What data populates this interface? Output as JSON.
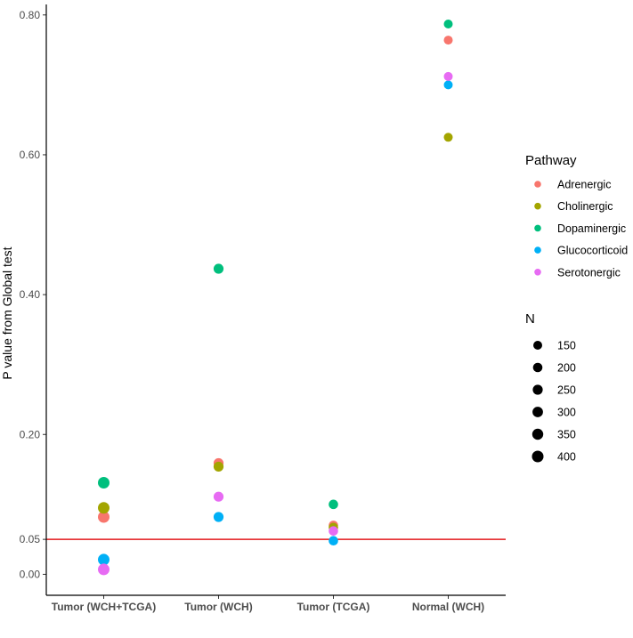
{
  "chart_data": {
    "type": "scatter",
    "categories": [
      "Tumor (WCH+TCGA)",
      "Tumor (WCH)",
      "Tumor (TCGA)",
      "Normal (WCH)"
    ],
    "ylabel": "P value from Global test",
    "xlabel": "",
    "ylim": [
      -0.03,
      0.815
    ],
    "yticks": [
      0.0,
      0.05,
      0.2,
      0.4,
      0.6,
      0.8
    ],
    "ytick_labels": [
      "0.00",
      "0.05",
      "0.20",
      "0.40",
      "0.60",
      "0.80"
    ],
    "reference_line": {
      "value": 0.05,
      "color": "#e31a1c"
    },
    "grid": false,
    "legend_position": "right",
    "series": [
      {
        "name": "Adrenergic",
        "color": "#F8766D",
        "points": [
          {
            "x": "Tumor (WCH+TCGA)",
            "y": 0.082,
            "n": 400
          },
          {
            "x": "Tumor (WCH)",
            "y": 0.159,
            "n": 250
          },
          {
            "x": "Tumor (TCGA)",
            "y": 0.07,
            "n": 200
          },
          {
            "x": "Normal (WCH)",
            "y": 0.764,
            "n": 150
          }
        ]
      },
      {
        "name": "Cholinergic",
        "color": "#A3A500",
        "points": [
          {
            "x": "Tumor (WCH+TCGA)",
            "y": 0.095,
            "n": 400
          },
          {
            "x": "Tumor (WCH)",
            "y": 0.154,
            "n": 250
          },
          {
            "x": "Tumor (TCGA)",
            "y": 0.067,
            "n": 200
          },
          {
            "x": "Normal (WCH)",
            "y": 0.625,
            "n": 150
          }
        ]
      },
      {
        "name": "Dopaminergic",
        "color": "#00BF7D",
        "points": [
          {
            "x": "Tumor (WCH+TCGA)",
            "y": 0.131,
            "n": 400
          },
          {
            "x": "Tumor (WCH)",
            "y": 0.437,
            "n": 250
          },
          {
            "x": "Tumor (TCGA)",
            "y": 0.1,
            "n": 200
          },
          {
            "x": "Normal (WCH)",
            "y": 0.787,
            "n": 150
          }
        ]
      },
      {
        "name": "Glucocorticoid",
        "color": "#00B0F6",
        "points": [
          {
            "x": "Tumor (WCH+TCGA)",
            "y": 0.021,
            "n": 400
          },
          {
            "x": "Tumor (WCH)",
            "y": 0.082,
            "n": 250
          },
          {
            "x": "Tumor (TCGA)",
            "y": 0.048,
            "n": 200
          },
          {
            "x": "Normal (WCH)",
            "y": 0.7,
            "n": 150
          }
        ]
      },
      {
        "name": "Serotonergic",
        "color": "#E76BF3",
        "points": [
          {
            "x": "Tumor (WCH+TCGA)",
            "y": 0.007,
            "n": 400
          },
          {
            "x": "Tumor (WCH)",
            "y": 0.111,
            "n": 250
          },
          {
            "x": "Tumor (TCGA)",
            "y": 0.062,
            "n": 200
          },
          {
            "x": "Normal (WCH)",
            "y": 0.712,
            "n": 150
          }
        ]
      }
    ],
    "legend": {
      "color_title": "Pathway",
      "color_items": [
        "Adrenergic",
        "Cholinergic",
        "Dopaminergic",
        "Glucocorticoid",
        "Serotonergic"
      ],
      "size_title": "N",
      "size_items": [
        150,
        200,
        250,
        300,
        350,
        400
      ]
    }
  }
}
